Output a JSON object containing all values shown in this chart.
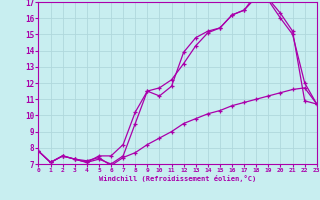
{
  "xlabel": "Windchill (Refroidissement éolien,°C)",
  "bg_color": "#c8eef0",
  "grid_color": "#b0d8dc",
  "line_color": "#aa00aa",
  "spine_color": "#8800aa",
  "xmin": 0,
  "xmax": 23,
  "ymin": 7,
  "ymax": 17,
  "line1_x": [
    0,
    1,
    2,
    3,
    4,
    5,
    6,
    7,
    8,
    9,
    10,
    11,
    12,
    13,
    14,
    15,
    16,
    17,
    18,
    19,
    20,
    21,
    22,
    23
  ],
  "line1_y": [
    7.8,
    7.1,
    7.5,
    7.3,
    7.1,
    7.3,
    7.0,
    7.5,
    9.5,
    11.5,
    11.2,
    11.8,
    13.9,
    14.8,
    15.2,
    15.4,
    16.2,
    16.5,
    17.3,
    17.1,
    16.0,
    15.0,
    12.0,
    10.7
  ],
  "line2_x": [
    0,
    1,
    2,
    3,
    4,
    5,
    6,
    7,
    8,
    9,
    10,
    11,
    12,
    13,
    14,
    15,
    16,
    17,
    18,
    19,
    20,
    21,
    22,
    23
  ],
  "line2_y": [
    7.8,
    7.1,
    7.5,
    7.3,
    7.1,
    7.5,
    7.5,
    8.2,
    10.2,
    11.5,
    11.7,
    12.2,
    13.2,
    14.3,
    15.1,
    15.4,
    16.2,
    16.5,
    17.5,
    17.2,
    16.3,
    15.2,
    10.9,
    10.7
  ],
  "line3_x": [
    0,
    1,
    2,
    3,
    4,
    5,
    6,
    7,
    8,
    9,
    10,
    11,
    12,
    13,
    14,
    15,
    16,
    17,
    18,
    19,
    20,
    21,
    22,
    23
  ],
  "line3_y": [
    7.8,
    7.1,
    7.5,
    7.3,
    7.2,
    7.4,
    6.9,
    7.4,
    7.7,
    8.2,
    8.6,
    9.0,
    9.5,
    9.8,
    10.1,
    10.3,
    10.6,
    10.8,
    11.0,
    11.2,
    11.4,
    11.6,
    11.7,
    10.7
  ]
}
